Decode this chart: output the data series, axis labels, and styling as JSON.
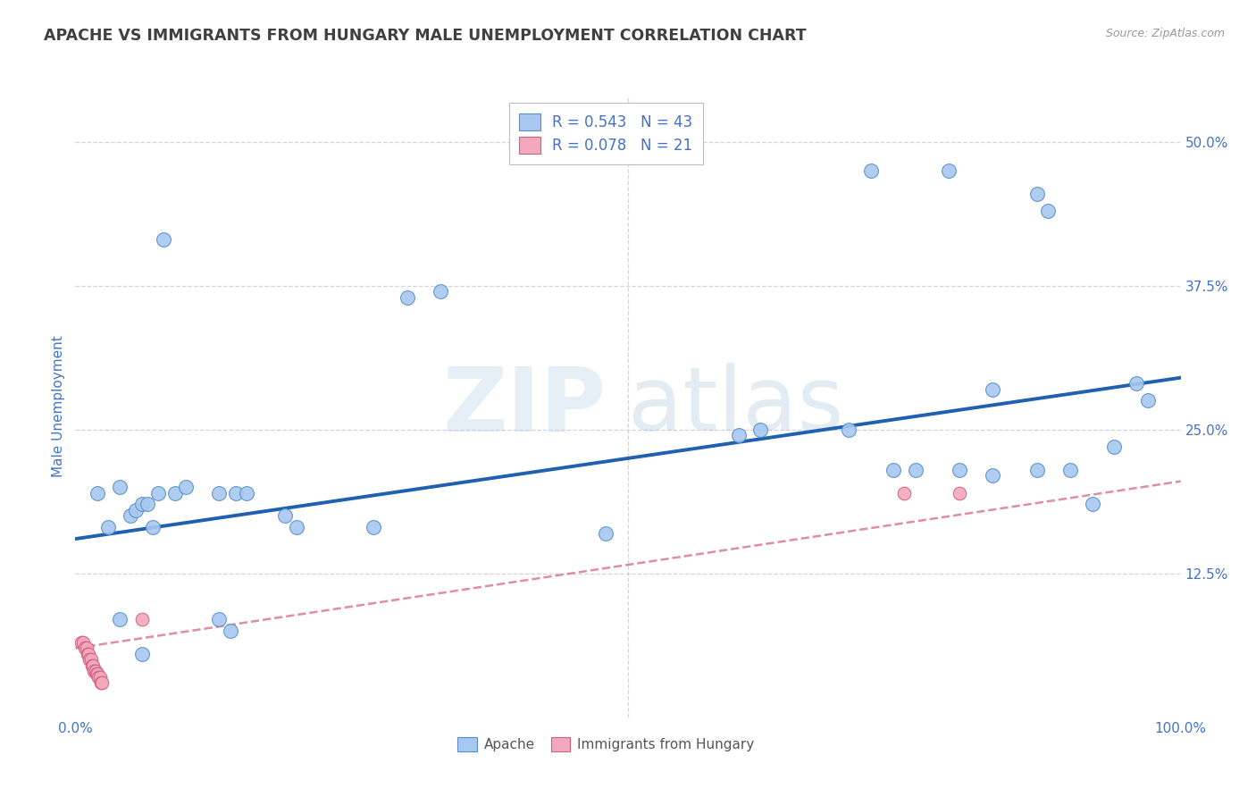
{
  "title": "APACHE VS IMMIGRANTS FROM HUNGARY MALE UNEMPLOYMENT CORRELATION CHART",
  "source": "Source: ZipAtlas.com",
  "ylabel": "Male Unemployment",
  "watermark_zip": "ZIP",
  "watermark_atlas": "atlas",
  "xlim": [
    0,
    1.0
  ],
  "ylim": [
    0,
    0.54
  ],
  "xticks": [
    0.0,
    0.125,
    0.25,
    0.375,
    0.5,
    0.625,
    0.75,
    0.875,
    1.0
  ],
  "ytick_positions": [
    0.125,
    0.25,
    0.375,
    0.5
  ],
  "ytick_labels": [
    "12.5%",
    "25.0%",
    "37.5%",
    "50.0%"
  ],
  "apache_color": "#a8c8f0",
  "hungary_color": "#f4a8be",
  "apache_edge_color": "#5590c8",
  "hungary_edge_color": "#d06080",
  "apache_line_color": "#2060b0",
  "hungary_line_color": "#d87090",
  "legend_r1": "R = 0.543",
  "legend_n1": "N = 43",
  "legend_r2": "R = 0.078",
  "legend_n2": "N = 21",
  "legend_label1": "Apache",
  "legend_label2": "Immigrants from Hungary",
  "title_color": "#404040",
  "axis_label_color": "#4472c4",
  "grid_color": "#c8c8d8",
  "apache_x": [
    0.08,
    0.3,
    0.33,
    0.72,
    0.79,
    0.83,
    0.87,
    0.88,
    0.96,
    0.97,
    0.02,
    0.03,
    0.04,
    0.05,
    0.055,
    0.06,
    0.065,
    0.07,
    0.075,
    0.09,
    0.1,
    0.13,
    0.145,
    0.155,
    0.19,
    0.2,
    0.27,
    0.48,
    0.6,
    0.62,
    0.7,
    0.74,
    0.76,
    0.8,
    0.83,
    0.87,
    0.9,
    0.92,
    0.94,
    0.04,
    0.06,
    0.13,
    0.14
  ],
  "apache_y": [
    0.415,
    0.365,
    0.37,
    0.475,
    0.475,
    0.285,
    0.455,
    0.44,
    0.29,
    0.275,
    0.195,
    0.165,
    0.2,
    0.175,
    0.18,
    0.185,
    0.185,
    0.165,
    0.195,
    0.195,
    0.2,
    0.195,
    0.195,
    0.195,
    0.175,
    0.165,
    0.165,
    0.16,
    0.245,
    0.25,
    0.25,
    0.215,
    0.215,
    0.215,
    0.21,
    0.215,
    0.215,
    0.185,
    0.235,
    0.085,
    0.055,
    0.085,
    0.075
  ],
  "hungary_x": [
    0.005,
    0.007,
    0.009,
    0.01,
    0.011,
    0.012,
    0.013,
    0.014,
    0.015,
    0.016,
    0.017,
    0.018,
    0.019,
    0.02,
    0.021,
    0.022,
    0.023,
    0.024,
    0.06,
    0.75,
    0.8
  ],
  "hungary_y": [
    0.065,
    0.065,
    0.06,
    0.06,
    0.055,
    0.055,
    0.05,
    0.05,
    0.045,
    0.045,
    0.04,
    0.04,
    0.038,
    0.038,
    0.035,
    0.035,
    0.03,
    0.03,
    0.085,
    0.195,
    0.195
  ],
  "apache_trend_x0": 0.0,
  "apache_trend_x1": 1.0,
  "apache_trend_y0": 0.155,
  "apache_trend_y1": 0.295,
  "hungary_trend_x0": 0.0,
  "hungary_trend_x1": 1.0,
  "hungary_trend_y0": 0.06,
  "hungary_trend_y1": 0.205
}
